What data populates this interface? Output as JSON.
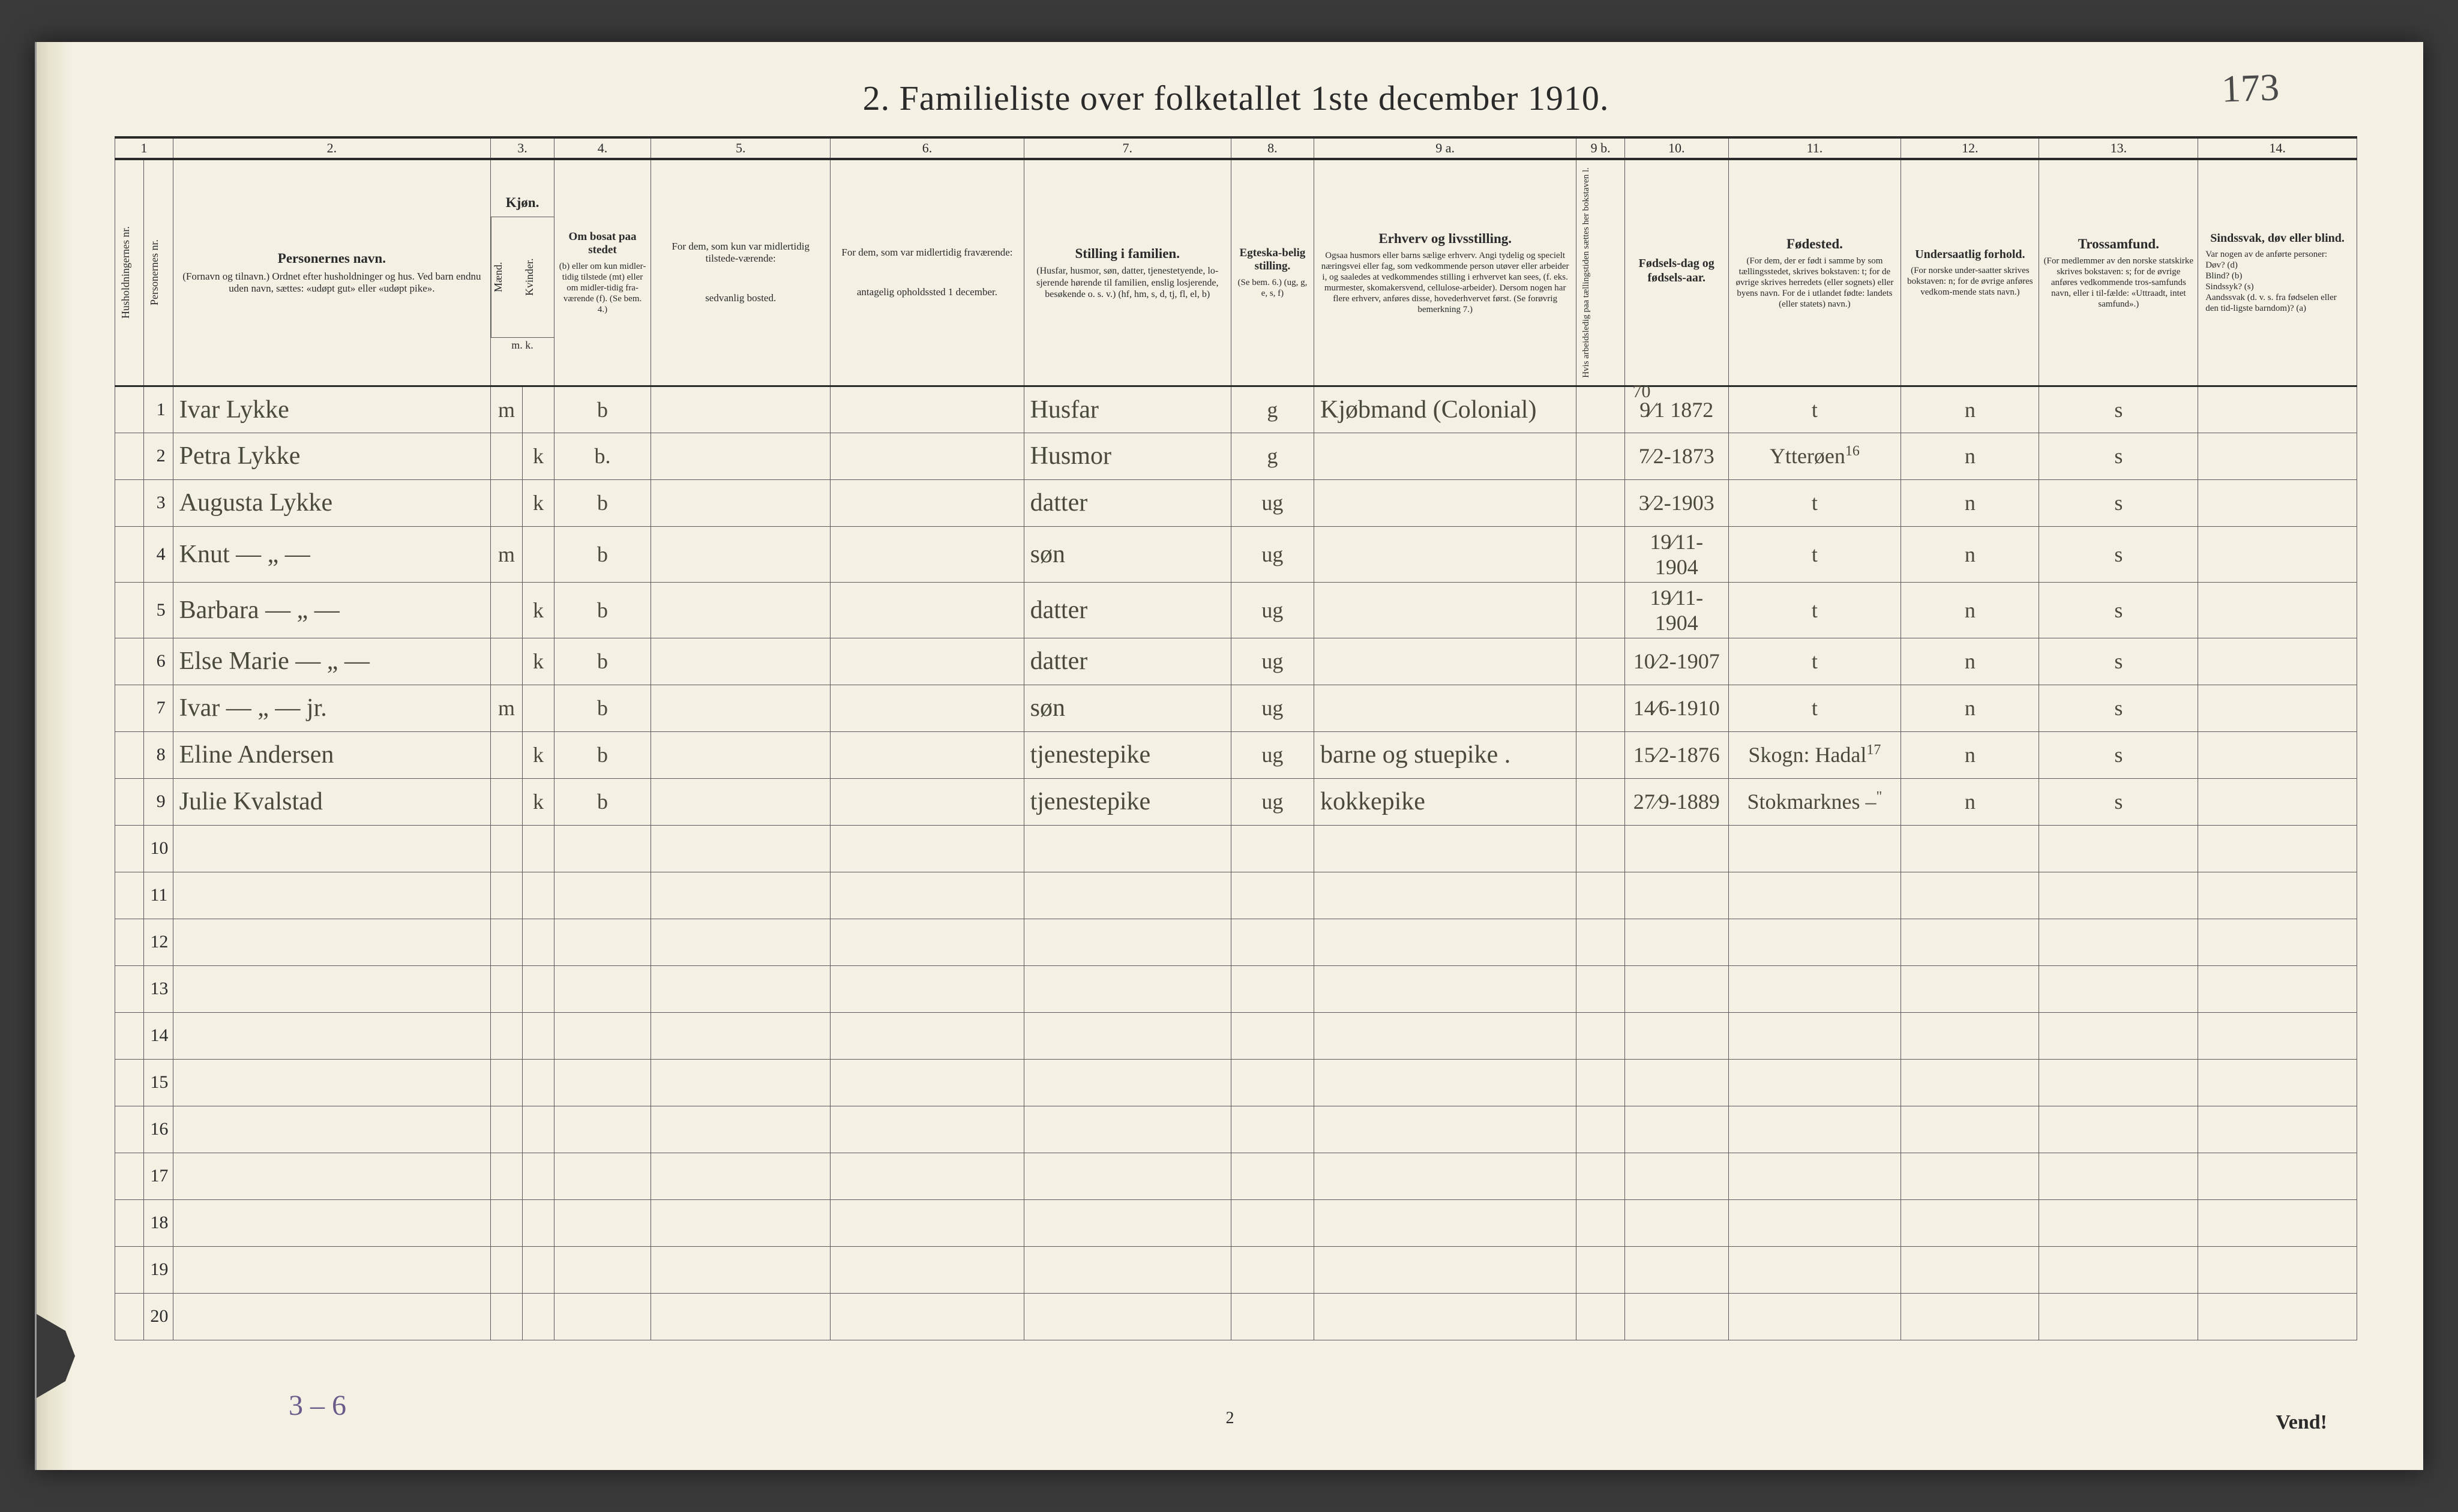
{
  "corner_annotation": "173",
  "title": "2.  Familieliste over folketallet 1ste december 1910.",
  "footer_handwritten": "3 – 6",
  "page_number": "2",
  "turn_over": "Vend!",
  "colors": {
    "paper": "#f4f0e4",
    "ink": "#2a2a2a",
    "handwriting": "#4a4a3a",
    "pencil_purple": "#6a5a8a",
    "rule": "#5a5a5a",
    "background": "#3a3a3a"
  },
  "column_numbers": [
    "1",
    "2.",
    "3.",
    "4.",
    "5.",
    "6.",
    "7.",
    "8.",
    "9 a.",
    "9 b.",
    "10.",
    "11.",
    "12.",
    "13.",
    "14."
  ],
  "headers": {
    "c1a": "Husholdningernes nr.",
    "c1b": "Personernes nr.",
    "c2_big": "Personernes navn.",
    "c2_sub": "(Fornavn og tilnavn.)\nOrdnet efter husholdninger og hus.\nVed barn endnu uden navn, sættes: «udøpt gut» eller «udøpt pike».",
    "c3_big": "Kjøn.",
    "c3a": "Mænd.",
    "c3b": "Kvinder.",
    "c3_sub": "m. k.",
    "c4_big": "Om bosat paa stedet",
    "c4_sub": "(b) eller om kun midler-tidig tilstede (mt) eller om midler-tidig fra-værende (f). (Se bem. 4.)",
    "c5_big": "For dem, som kun var midlertidig tilstede-værende:",
    "c5_sub": "sedvanlig bosted.",
    "c6_big": "For dem, som var midlertidig fraværende:",
    "c6_sub": "antagelig opholdssted 1 december.",
    "c7_big": "Stilling i familien.",
    "c7_sub": "(Husfar, husmor, søn, datter, tjenestetyende, lo-sjerende hørende til familien, enslig losjerende, besøkende o. s. v.)\n(hf, hm, s, d, tj, fl, el, b)",
    "c8_big": "Egteska-belig stilling.",
    "c8_sub": "(Se bem. 6.)\n(ug, g, e, s, f)",
    "c9a_big": "Erhverv og livsstilling.",
    "c9a_sub": "Ogsaa husmors eller barns sælige erhverv. Angi tydelig og specielt næringsvei eller fag, som vedkommende person utøver eller arbeider i, og saaledes at vedkommendes stilling i erhvervet kan sees, (f. eks. murmester, skomakersvend, cellulose-arbeider).  Dersom nogen har flere erhverv, anføres disse, hovederhvervet først. (Se forøvrig bemerkning 7.)",
    "c9b": "Hvis arbeidsledig paa tællingstiden sættes her bokstaven l.",
    "c10_big": "Fødsels-dag og fødsels-aar.",
    "c11_big": "Fødested.",
    "c11_sub": "(For dem, der er født i samme by som tællingsstedet, skrives bokstaven: t; for de øvrige skrives herredets (eller sognets) eller byens navn. For de i utlandet fødte: landets (eller statets) navn.)",
    "c12_big": "Undersaatlig forhold.",
    "c12_sub": "(For norske under-saatter skrives bokstaven: n; for de øvrige anføres vedkom-mende stats navn.)",
    "c13_big": "Trossamfund.",
    "c13_sub": "(For medlemmer av den norske statskirke skrives bokstaven: s; for de øvrige anføres vedkommende tros-samfunds navn, eller i til-fælde: «Uttraadt, intet samfund».)",
    "c14_big": "Sindssvak, døv eller blind.",
    "c14_sub": "Var nogen av de anførte personer:\nDøv?  (d)\nBlind?  (b)\nSindssyk?  (s)\nAandssvak (d. v. s. fra fødselen eller den tid-ligste barndom)?  (a)"
  },
  "rows": [
    {
      "n": "1",
      "name": "Ivar Lykke",
      "sex_m": "m",
      "sex_k": "",
      "res": "b",
      "c7": "Husfar",
      "c8": "g",
      "c9a": "Kjøbmand (Colonial)",
      "c9a_over": "70",
      "c10": "9⁄1 1872",
      "c11": "t",
      "c12": "n",
      "c13": "s"
    },
    {
      "n": "2",
      "name": "Petra Lykke",
      "sex_m": "",
      "sex_k": "k",
      "res": "b.",
      "c7": "Husmor",
      "c8": "g",
      "c9a": "",
      "c10": "7⁄2-1873",
      "c11": "Ytterøen",
      "c11_sup": "16",
      "c12": "n",
      "c13": "s"
    },
    {
      "n": "3",
      "name": "Augusta Lykke",
      "sex_m": "",
      "sex_k": "k",
      "res": "b",
      "c7": "datter",
      "c8": "ug",
      "c9a": "",
      "c10": "3⁄2-1903",
      "c11": "t",
      "c12": "n",
      "c13": "s"
    },
    {
      "n": "4",
      "name": "Knut    — „ —",
      "sex_m": "m",
      "sex_k": "",
      "res": "b",
      "c7": "søn",
      "c8": "ug",
      "c9a": "",
      "c10": "19⁄11-1904",
      "c11": "t",
      "c12": "n",
      "c13": "s"
    },
    {
      "n": "5",
      "name": "Barbara  — „ —",
      "sex_m": "",
      "sex_k": "k",
      "res": "b",
      "c7": "datter",
      "c8": "ug",
      "c9a": "",
      "c10": "19⁄11-1904",
      "c11": "t",
      "c12": "n",
      "c13": "s"
    },
    {
      "n": "6",
      "name": "Else Marie — „ —",
      "sex_m": "",
      "sex_k": "k",
      "res": "b",
      "c7": "datter",
      "c8": "ug",
      "c9a": "",
      "c10": "10⁄2-1907",
      "c11": "t",
      "c12": "n",
      "c13": "s"
    },
    {
      "n": "7",
      "name": "Ivar   — „ — jr.",
      "sex_m": "m",
      "sex_k": "",
      "res": "b",
      "c7": "søn",
      "c8": "ug",
      "c9a": "",
      "c10": "14⁄6-1910",
      "c11": "t",
      "c12": "n",
      "c13": "s"
    },
    {
      "n": "8",
      "name": "Eline Andersen",
      "sex_m": "",
      "sex_k": "k",
      "res": "b",
      "c7": "tjenestepike",
      "c8": "ug",
      "c9a": "barne og stuepike .",
      "c10": "15⁄2-1876",
      "c11": "Skogn: Hadal",
      "c11_sup": "17",
      "c12": "n",
      "c13": "s"
    },
    {
      "n": "9",
      "name": "Julie Kvalstad",
      "sex_m": "",
      "sex_k": "k",
      "res": "b",
      "c7": "tjenestepike",
      "c8": "ug",
      "c9a": "kokkepike",
      "c10": "27⁄9-1889",
      "c11": "Stokmarknes –",
      "c11_sup": "\"",
      "c12": "n",
      "c13": "s"
    },
    {
      "n": "10"
    },
    {
      "n": "11"
    },
    {
      "n": "12"
    },
    {
      "n": "13"
    },
    {
      "n": "14"
    },
    {
      "n": "15"
    },
    {
      "n": "16"
    },
    {
      "n": "17"
    },
    {
      "n": "18"
    },
    {
      "n": "19"
    },
    {
      "n": "20"
    }
  ]
}
